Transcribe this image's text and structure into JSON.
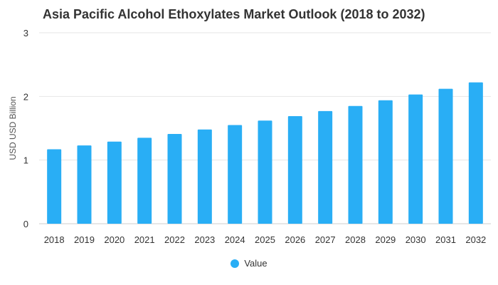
{
  "title": "Asia Pacific Alcohol Ethoxylates Market Outlook (2018 to 2032)",
  "colors": {
    "bar": "#29aef5",
    "grid": "#e6e6e6",
    "axis": "#cccccc"
  },
  "chart_data": {
    "type": "bar",
    "title": "Asia Pacific Alcohol Ethoxylates Market Outlook (2018 to 2032)",
    "xlabel": "",
    "ylabel": "USD USD Billion",
    "ylim": [
      0,
      3
    ],
    "yticks": [
      0,
      1,
      2,
      3
    ],
    "categories": [
      "2018",
      "2019",
      "2020",
      "2021",
      "2022",
      "2023",
      "2024",
      "2025",
      "2026",
      "2027",
      "2028",
      "2029",
      "2030",
      "2031",
      "2032"
    ],
    "series": [
      {
        "name": "Value",
        "values": [
          1.17,
          1.23,
          1.29,
          1.35,
          1.41,
          1.48,
          1.55,
          1.62,
          1.69,
          1.77,
          1.85,
          1.94,
          2.03,
          2.12,
          2.22
        ]
      }
    ],
    "grid": true,
    "legend": "bottom-center"
  }
}
